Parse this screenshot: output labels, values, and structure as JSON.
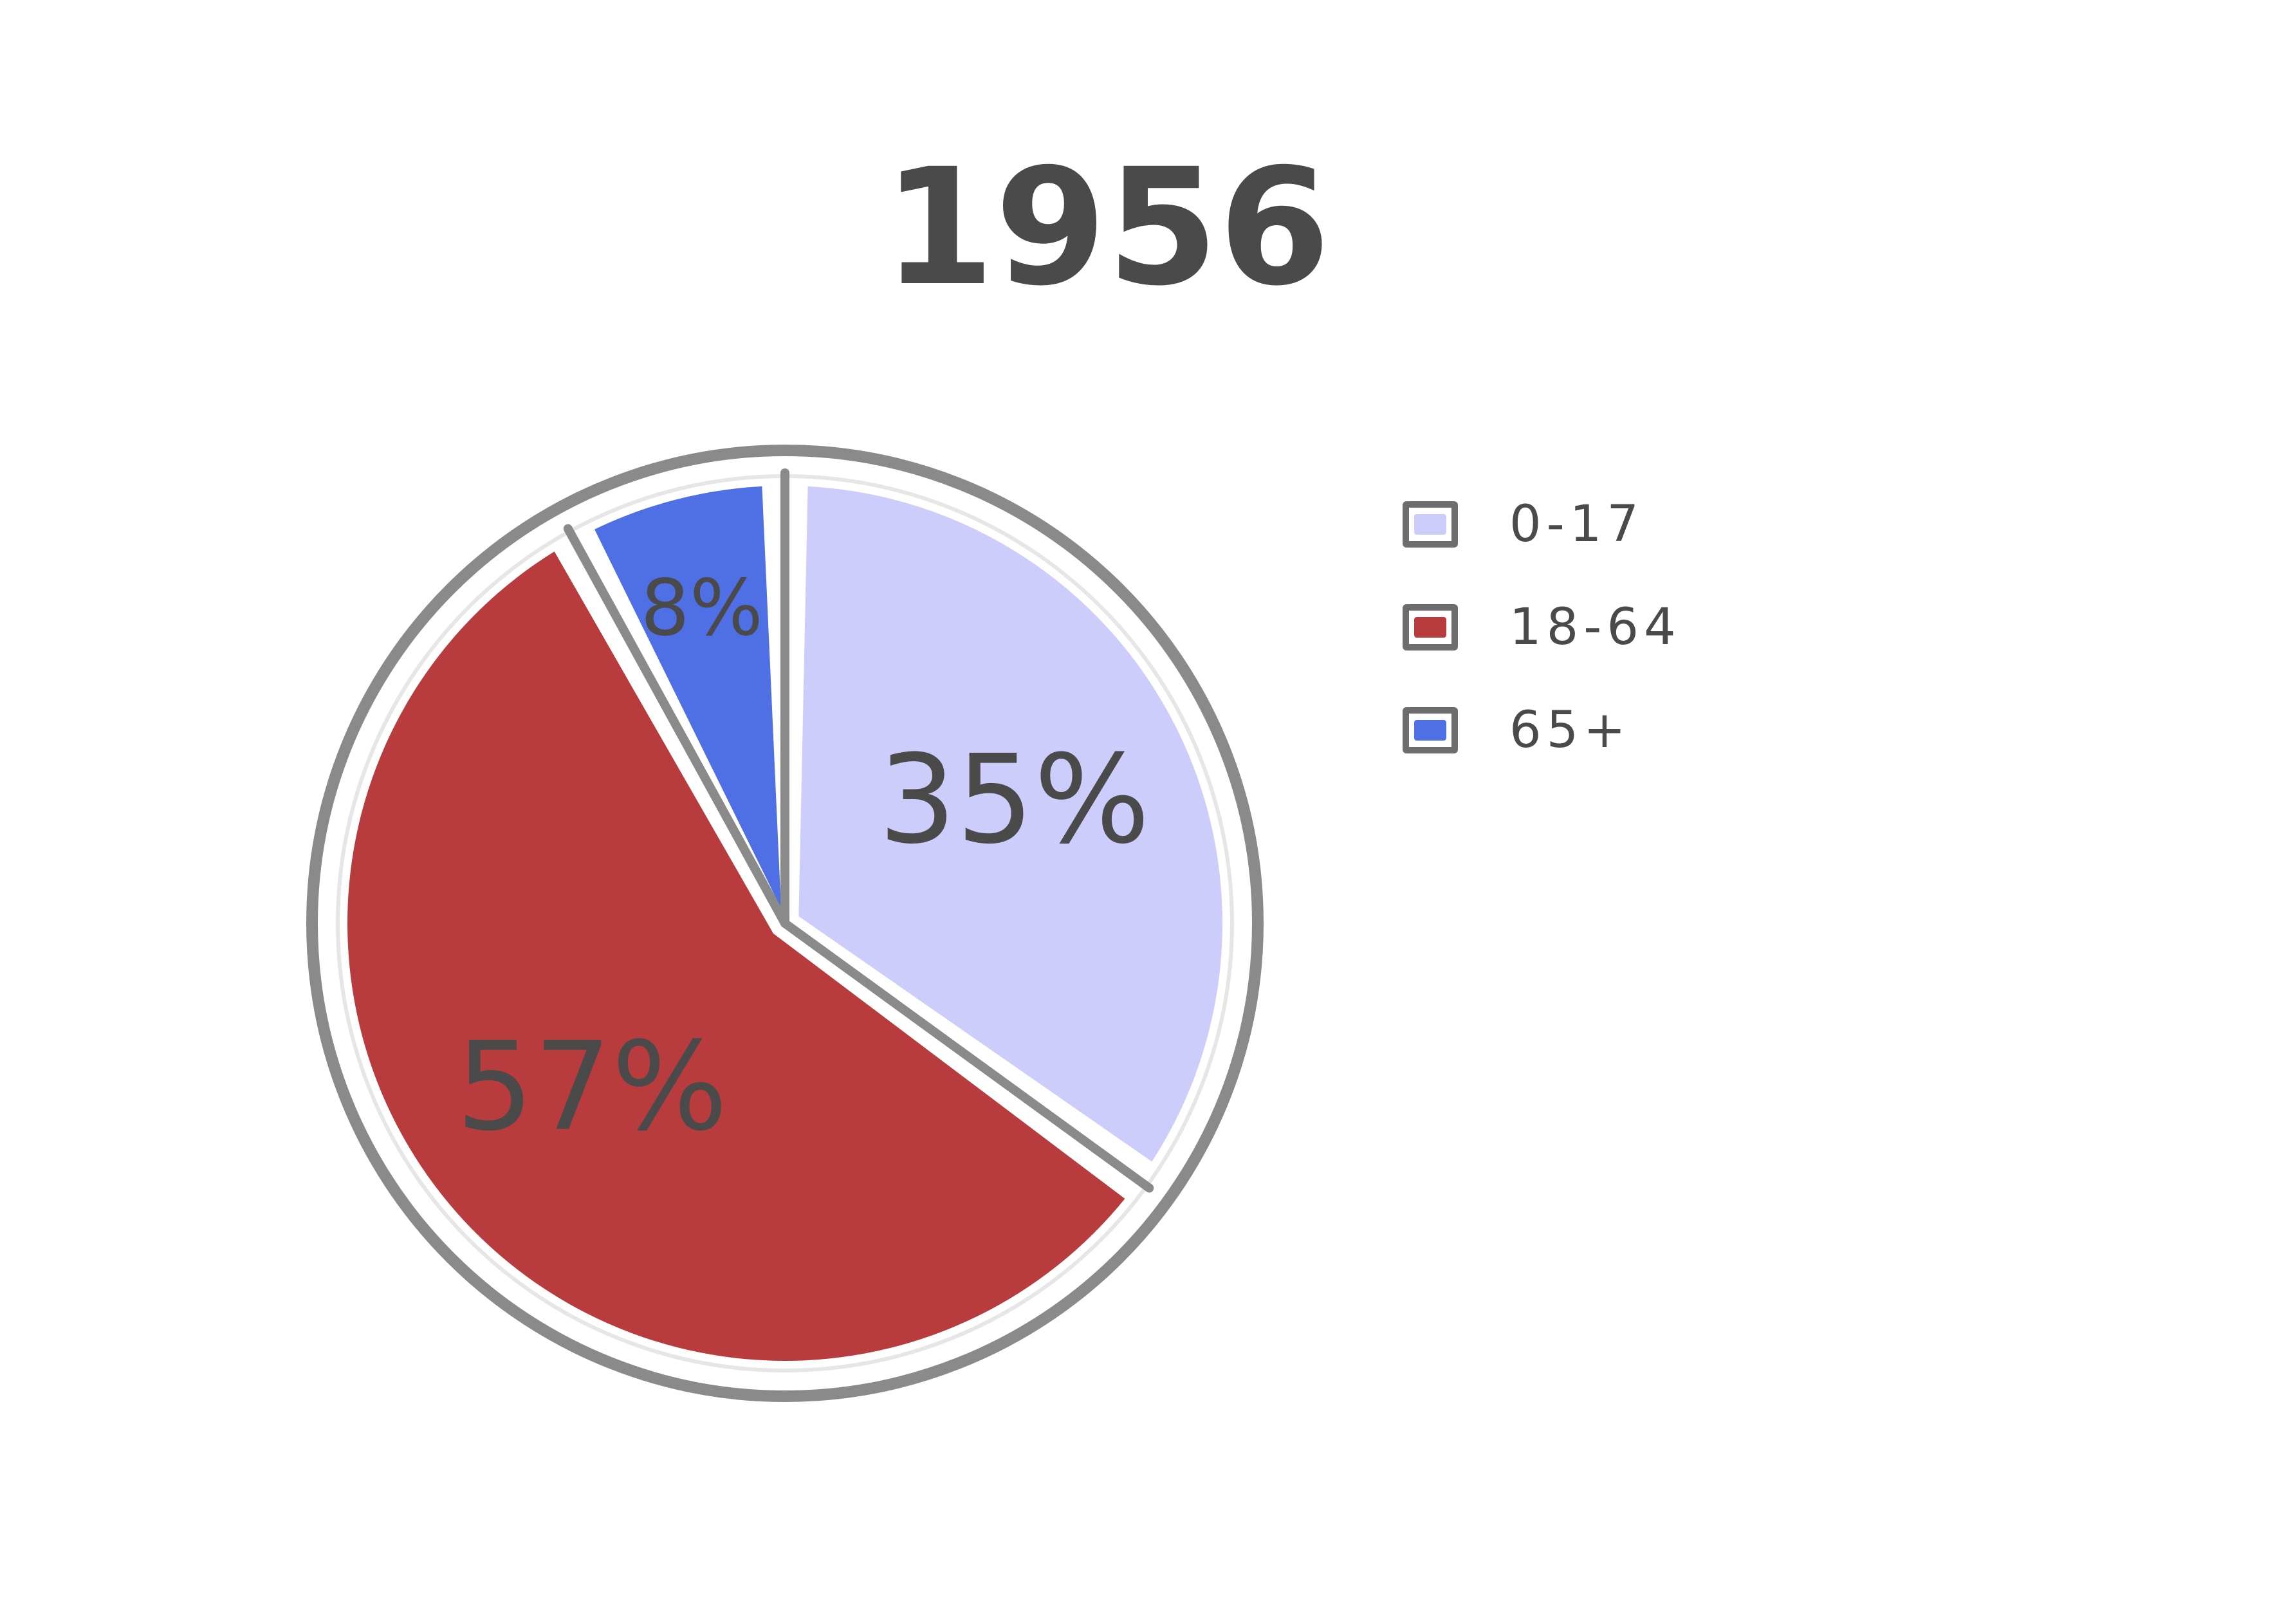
{
  "chart_data": {
    "type": "pie",
    "title": "1956",
    "slices": [
      {
        "label": "0-17",
        "value": 35,
        "value_label": "35%",
        "color": "#cccdfa"
      },
      {
        "label": "18-64",
        "value": 57,
        "value_label": "57%",
        "color": "#b83c3d"
      },
      {
        "label": "65+",
        "value": 8,
        "value_label": "8%",
        "color": "#4f6fe5"
      }
    ],
    "start_angle_deg": 90,
    "direction": "clockwise",
    "legend_position": "right",
    "outline_color": "#6d6d6d"
  }
}
